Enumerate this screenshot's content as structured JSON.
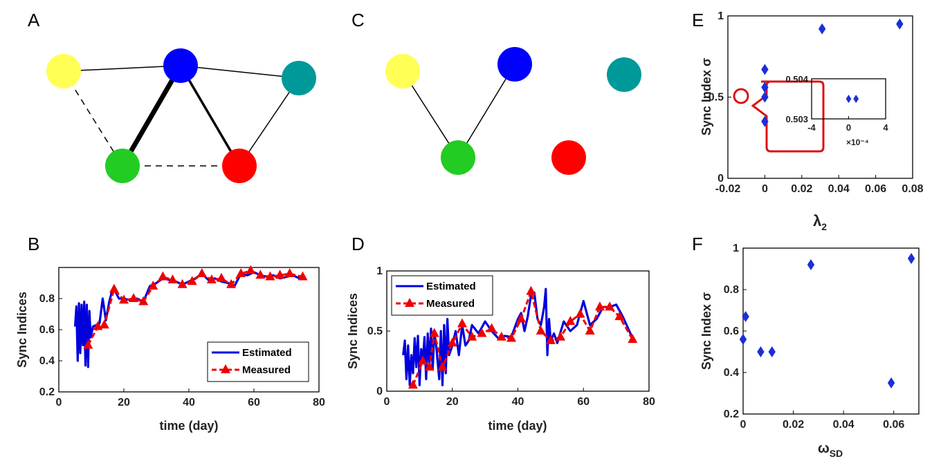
{
  "panel_labels": {
    "A": "A",
    "B": "B",
    "C": "C",
    "D": "D",
    "E": "E",
    "F": "F"
  },
  "node_colors": {
    "yellow": "#ffff55",
    "blue": "#0000ff",
    "teal": "#009999",
    "green": "#22cc22",
    "red": "#ff0000"
  },
  "network_A": {
    "edges": [
      {
        "from": "yellow",
        "to": "blue",
        "style": "solid",
        "weight": "thin"
      },
      {
        "from": "blue",
        "to": "teal",
        "style": "solid",
        "weight": "thin"
      },
      {
        "from": "blue",
        "to": "green",
        "style": "solid",
        "weight": "thick"
      },
      {
        "from": "blue",
        "to": "red",
        "style": "solid",
        "weight": "medium"
      },
      {
        "from": "teal",
        "to": "red",
        "style": "solid",
        "weight": "thin"
      },
      {
        "from": "yellow",
        "to": "green",
        "style": "dashed",
        "weight": "thin"
      },
      {
        "from": "green",
        "to": "red",
        "style": "dashed",
        "weight": "thin"
      }
    ]
  },
  "network_C": {
    "edges": [
      {
        "from": "yellow",
        "to": "green",
        "style": "solid",
        "weight": "thin"
      },
      {
        "from": "blue",
        "to": "green",
        "style": "solid",
        "weight": "thin"
      }
    ]
  },
  "chart_data": [
    {
      "panel": "B",
      "type": "line",
      "xlabel": "time (day)",
      "ylabel": "Sync Indices",
      "xlim": [
        0,
        80
      ],
      "ylim": [
        0.2,
        1.0
      ],
      "xticks": [
        "0",
        "20",
        "40",
        "60",
        "80"
      ],
      "yticks": [
        "0.2",
        "0.4",
        "0.6",
        "0.8"
      ],
      "legend_position": "bottom-right",
      "series": [
        {
          "name": "Estimated",
          "color": "#0000dd",
          "style": "solid",
          "x": [
            5,
            5.4,
            5.8,
            6.2,
            6.6,
            7,
            7.4,
            7.8,
            8.2,
            8.6,
            9,
            9.4,
            9.8,
            10.5,
            11.5,
            12.5,
            13.5,
            14.5,
            15.5,
            16.5,
            17.5,
            18.5,
            20,
            22,
            24,
            26,
            28,
            30,
            32,
            34,
            36,
            38,
            40,
            42,
            44,
            46,
            48,
            50,
            52,
            54,
            56,
            58,
            60,
            62,
            64,
            66,
            68,
            70,
            72,
            74,
            75
          ],
          "y": [
            0.62,
            0.75,
            0.4,
            0.77,
            0.45,
            0.76,
            0.5,
            0.78,
            0.37,
            0.76,
            0.36,
            0.72,
            0.55,
            0.62,
            0.63,
            0.64,
            0.8,
            0.66,
            0.78,
            0.86,
            0.84,
            0.8,
            0.8,
            0.79,
            0.8,
            0.78,
            0.88,
            0.9,
            0.93,
            0.92,
            0.91,
            0.89,
            0.91,
            0.93,
            0.96,
            0.92,
            0.93,
            0.91,
            0.9,
            0.88,
            0.96,
            0.95,
            0.97,
            0.95,
            0.94,
            0.95,
            0.93,
            0.94,
            0.95,
            0.93,
            0.93
          ]
        },
        {
          "name": "Measured",
          "color": "#ee0000",
          "style": "dashed",
          "x": [
            9,
            12,
            14,
            17,
            20,
            23,
            26,
            29,
            32,
            35,
            38,
            41,
            44,
            47,
            50,
            53,
            56,
            59,
            62,
            65,
            68,
            71,
            75
          ],
          "y": [
            0.5,
            0.62,
            0.63,
            0.86,
            0.79,
            0.8,
            0.78,
            0.88,
            0.94,
            0.92,
            0.89,
            0.91,
            0.96,
            0.92,
            0.93,
            0.89,
            0.96,
            0.98,
            0.95,
            0.94,
            0.95,
            0.96,
            0.94
          ]
        }
      ]
    },
    {
      "panel": "D",
      "type": "line",
      "xlabel": "time (day)",
      "ylabel": "Sync Indices",
      "xlim": [
        0,
        80
      ],
      "ylim": [
        0,
        1
      ],
      "xticks": [
        "0",
        "20",
        "40",
        "60",
        "80"
      ],
      "yticks": [
        "0",
        "0.5",
        "1"
      ],
      "legend_position": "top-left",
      "series": [
        {
          "name": "Estimated",
          "color": "#0000dd",
          "style": "solid",
          "x": [
            5,
            5.5,
            6,
            6.5,
            7,
            7.5,
            8,
            8.5,
            9,
            9.5,
            10,
            10.5,
            11,
            11.5,
            12,
            12.5,
            13,
            13.5,
            14,
            14.5,
            15,
            16,
            16.5,
            17,
            17.5,
            18,
            18.5,
            19,
            20,
            21,
            22,
            23,
            24,
            25,
            26,
            28,
            30,
            32,
            34,
            36,
            38,
            40,
            41,
            42,
            43,
            44,
            45,
            46,
            47,
            48,
            48.5,
            49,
            49.5,
            50,
            51,
            52,
            54,
            56,
            58,
            60,
            62,
            64,
            66,
            68,
            70,
            72,
            74,
            75
          ],
          "y": [
            0.3,
            0.42,
            0.1,
            0.38,
            0.05,
            0.3,
            0.15,
            0.44,
            0.2,
            0.46,
            0.05,
            0.35,
            0.25,
            0.45,
            0.1,
            0.48,
            0.22,
            0.52,
            0.18,
            0.48,
            0.4,
            0.1,
            0.5,
            0.05,
            0.55,
            0.15,
            0.6,
            0.3,
            0.38,
            0.5,
            0.3,
            0.55,
            0.38,
            0.42,
            0.55,
            0.48,
            0.58,
            0.5,
            0.44,
            0.46,
            0.45,
            0.6,
            0.65,
            0.5,
            0.62,
            0.8,
            0.82,
            0.6,
            0.55,
            0.7,
            0.85,
            0.3,
            0.6,
            0.42,
            0.48,
            0.4,
            0.58,
            0.5,
            0.55,
            0.75,
            0.55,
            0.6,
            0.7,
            0.7,
            0.72,
            0.62,
            0.5,
            0.44
          ]
        },
        {
          "name": "Measured",
          "color": "#ee0000",
          "style": "dashed",
          "x": [
            8,
            11,
            13,
            14.5,
            17,
            20,
            23,
            26,
            29,
            32,
            35,
            38,
            41,
            44,
            47,
            50,
            53,
            56,
            59,
            62,
            65,
            68,
            71,
            75
          ],
          "y": [
            0.05,
            0.25,
            0.2,
            0.48,
            0.2,
            0.4,
            0.56,
            0.45,
            0.48,
            0.52,
            0.45,
            0.44,
            0.6,
            0.83,
            0.5,
            0.42,
            0.45,
            0.58,
            0.64,
            0.5,
            0.7,
            0.7,
            0.62,
            0.43
          ]
        }
      ]
    },
    {
      "panel": "E",
      "type": "scatter",
      "xlabel": "λ",
      "xlabel_sub": "2",
      "ylabel": "Sync Index σ",
      "xlim": [
        -0.02,
        0.08
      ],
      "ylim": [
        0,
        1
      ],
      "xticks": [
        "-0.02",
        "0",
        "0.02",
        "0.04",
        "0.06",
        "0.08"
      ],
      "yticks": [
        "0",
        "0.5",
        "1"
      ],
      "marker": "diamond",
      "color": "#1a2fd8",
      "points": [
        {
          "x": 0.0,
          "y": 0.35
        },
        {
          "x": 0.0,
          "y": 0.5
        },
        {
          "x": 0.0,
          "y": 0.56
        },
        {
          "x": 0.0,
          "y": 0.67
        },
        {
          "x": 0.031,
          "y": 0.92
        },
        {
          "x": 0.073,
          "y": 0.95
        }
      ],
      "inset": {
        "xlim": [
          -0.0004,
          0.0004
        ],
        "ylim": [
          0.503,
          0.504
        ],
        "xticks": [
          "-4",
          "0",
          "4"
        ],
        "yticks": [
          "0.503",
          "0.504"
        ],
        "x_multiplier": "×10⁻⁴",
        "points": [
          {
            "x": 0.0,
            "y": 0.5035
          },
          {
            "x": 8e-05,
            "y": 0.5035
          }
        ]
      }
    },
    {
      "panel": "F",
      "type": "scatter",
      "xlabel": "ω",
      "xlabel_sub": "SD",
      "ylabel": "Sync Index σ",
      "xlim": [
        0,
        0.07
      ],
      "ylim": [
        0.2,
        1
      ],
      "xticks": [
        "0",
        "0.02",
        "0.04",
        "0.06"
      ],
      "yticks": [
        "0.2",
        "0.4",
        "0.6",
        "0.8",
        "1"
      ],
      "marker": "diamond",
      "color": "#1a2fd8",
      "points": [
        {
          "x": 0.0,
          "y": 0.56
        },
        {
          "x": 0.001,
          "y": 0.67
        },
        {
          "x": 0.007,
          "y": 0.5
        },
        {
          "x": 0.0115,
          "y": 0.5
        },
        {
          "x": 0.027,
          "y": 0.92
        },
        {
          "x": 0.059,
          "y": 0.35
        },
        {
          "x": 0.067,
          "y": 0.95
        }
      ]
    }
  ]
}
